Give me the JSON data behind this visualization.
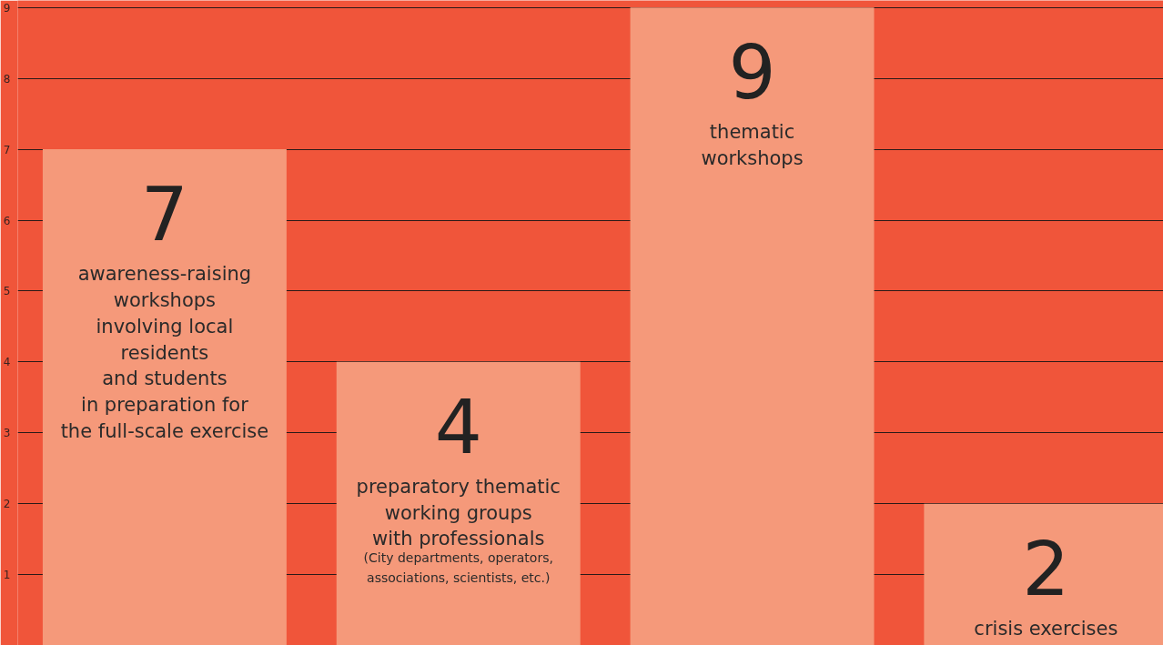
{
  "chart_data": {
    "type": "bar",
    "categories": [
      "awareness-raising\nworkshops\ninvolving local\nresidents\nand students\nin preparation for\nthe full-scale exercise",
      "preparatory thematic\nworking groups\nwith professionals",
      "thematic\nworkshops",
      "crisis exercises"
    ],
    "values": [
      7,
      4,
      9,
      2
    ],
    "color": "#f5997a",
    "data_labels": true,
    "ylim": [
      0,
      9.1
    ],
    "yticks": [
      1,
      2,
      3,
      4,
      5,
      6,
      7,
      8,
      9
    ],
    "grid": "y",
    "annotations": [
      "(City departments, operators,\nassociations, scientists, etc.)"
    ]
  }
}
